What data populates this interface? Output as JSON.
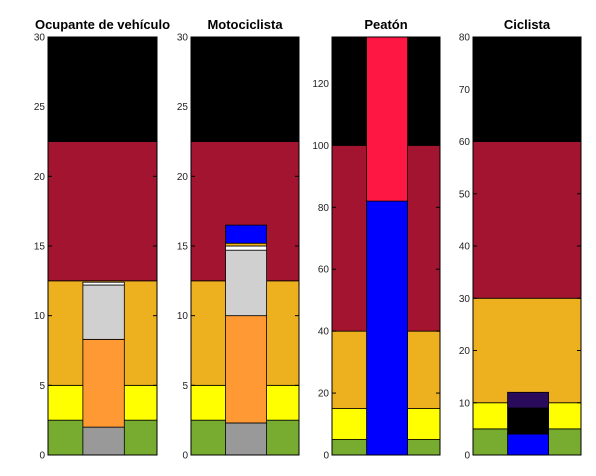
{
  "chart_data": [
    {
      "type": "bar",
      "title": "Ocupante de vehículo",
      "ylim": [
        0,
        30
      ],
      "yticks": [
        0,
        5,
        10,
        15,
        20,
        25,
        30
      ],
      "background_bands": [
        {
          "from": 0,
          "to": 2.5,
          "color": "#77ac30"
        },
        {
          "from": 2.5,
          "to": 5,
          "color": "#ffff00"
        },
        {
          "from": 5,
          "to": 12.5,
          "color": "#edb120"
        },
        {
          "from": 12.5,
          "to": 22.5,
          "color": "#a2142f"
        },
        {
          "from": 22.5,
          "to": 30,
          "color": "#000000"
        }
      ],
      "bar_stack": [
        {
          "from": 0,
          "to": 2,
          "color": "#999999"
        },
        {
          "from": 2,
          "to": 8.3,
          "color": "#ff9933"
        },
        {
          "from": 8.3,
          "to": 12.2,
          "color": "#d0d0d0"
        },
        {
          "from": 12.2,
          "to": 12.4,
          "color": "#ffffff"
        }
      ]
    },
    {
      "type": "bar",
      "title": "Motociclista",
      "ylim": [
        0,
        30
      ],
      "yticks": [
        0,
        5,
        10,
        15,
        20,
        25,
        30
      ],
      "background_bands": [
        {
          "from": 0,
          "to": 2.5,
          "color": "#77ac30"
        },
        {
          "from": 2.5,
          "to": 5,
          "color": "#ffff00"
        },
        {
          "from": 5,
          "to": 12.5,
          "color": "#edb120"
        },
        {
          "from": 12.5,
          "to": 22.5,
          "color": "#a2142f"
        },
        {
          "from": 22.5,
          "to": 30,
          "color": "#000000"
        }
      ],
      "bar_stack": [
        {
          "from": 0,
          "to": 2.3,
          "color": "#999999"
        },
        {
          "from": 2.3,
          "to": 10,
          "color": "#ff9933"
        },
        {
          "from": 10,
          "to": 14.7,
          "color": "#d0d0d0"
        },
        {
          "from": 14.7,
          "to": 15,
          "color": "#ffffff"
        },
        {
          "from": 15,
          "to": 15.2,
          "color": "#edb120"
        },
        {
          "from": 15.2,
          "to": 16.5,
          "color": "#0000ff"
        }
      ]
    },
    {
      "type": "bar",
      "title": "Peatón",
      "ylim": [
        0,
        135
      ],
      "yticks": [
        0,
        20,
        40,
        60,
        80,
        100,
        120
      ],
      "background_bands": [
        {
          "from": 0,
          "to": 5,
          "color": "#77ac30"
        },
        {
          "from": 5,
          "to": 15,
          "color": "#ffff00"
        },
        {
          "from": 15,
          "to": 40,
          "color": "#edb120"
        },
        {
          "from": 40,
          "to": 100,
          "color": "#a2142f"
        },
        {
          "from": 100,
          "to": 135,
          "color": "#000000"
        }
      ],
      "bar_stack": [
        {
          "from": 0,
          "to": 82,
          "color": "#0000ff"
        },
        {
          "from": 82,
          "to": 135,
          "color": "#ff1744"
        }
      ]
    },
    {
      "type": "bar",
      "title": "Ciclista",
      "ylim": [
        0,
        80
      ],
      "yticks": [
        0,
        10,
        20,
        30,
        40,
        50,
        60,
        70,
        80
      ],
      "background_bands": [
        {
          "from": 0,
          "to": 5,
          "color": "#77ac30"
        },
        {
          "from": 5,
          "to": 10,
          "color": "#ffff00"
        },
        {
          "from": 10,
          "to": 30,
          "color": "#edb120"
        },
        {
          "from": 30,
          "to": 60,
          "color": "#a2142f"
        },
        {
          "from": 60,
          "to": 80,
          "color": "#000000"
        }
      ],
      "bar_stack": [
        {
          "from": 0,
          "to": 4,
          "color": "#0000ff"
        },
        {
          "from": 4,
          "to": 9,
          "color": "#000000"
        },
        {
          "from": 9,
          "to": 12,
          "color": "#2a0a5a"
        }
      ]
    }
  ]
}
